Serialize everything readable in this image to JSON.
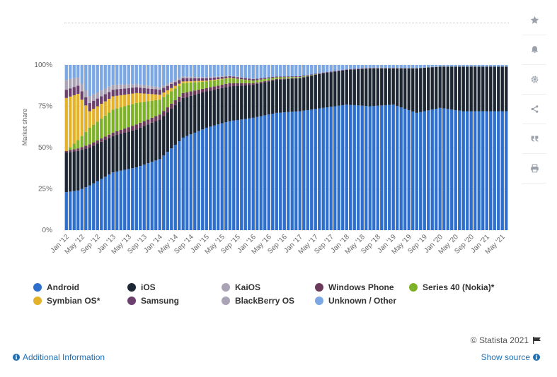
{
  "toolbar": {
    "icons": [
      "star-icon",
      "bell-icon",
      "gear-icon",
      "share-icon",
      "quote-icon",
      "print-icon"
    ]
  },
  "chart_data": {
    "type": "bar",
    "stacked": true,
    "ylabel": "Market share",
    "ylim": [
      0,
      100
    ],
    "yticks": [
      "0%",
      "25%",
      "50%",
      "75%",
      "100%"
    ],
    "grid": true,
    "x_tick_labels": [
      "Jan '12",
      "May '12",
      "Sep '12",
      "Jan '13",
      "May '13",
      "Sep '13",
      "Jan '14",
      "May '14",
      "Sep '14",
      "Jan '15",
      "May '15",
      "Sep '15",
      "Jan '16",
      "May '16",
      "Sep '16",
      "Jan '17",
      "May '17",
      "Sep '17",
      "Jan '18",
      "May '18",
      "Sep '18",
      "Jan '19",
      "May '19",
      "Sep '19",
      "Jan '20",
      "May '20",
      "Sep '20",
      "Jan '21",
      "May '21"
    ],
    "months_count": 114,
    "series": [
      {
        "name": "Android",
        "color": "#2e6fce",
        "keys": [
          [
            0,
            23
          ],
          [
            3,
            24
          ],
          [
            6,
            27
          ],
          [
            12,
            35
          ],
          [
            18,
            38
          ],
          [
            24,
            43
          ],
          [
            30,
            56
          ],
          [
            36,
            62
          ],
          [
            42,
            66
          ],
          [
            48,
            68
          ],
          [
            54,
            71
          ],
          [
            60,
            72
          ],
          [
            66,
            74
          ],
          [
            72,
            76
          ],
          [
            78,
            75
          ],
          [
            84,
            76
          ],
          [
            90,
            71
          ],
          [
            96,
            74
          ],
          [
            102,
            72
          ],
          [
            108,
            72
          ],
          [
            113,
            72
          ]
        ]
      },
      {
        "name": "iOS",
        "color": "#1d2733",
        "keys": [
          [
            0,
            24
          ],
          [
            3,
            24
          ],
          [
            6,
            23
          ],
          [
            12,
            22
          ],
          [
            18,
            23
          ],
          [
            24,
            24
          ],
          [
            30,
            24
          ],
          [
            36,
            22
          ],
          [
            42,
            21
          ],
          [
            48,
            20
          ],
          [
            54,
            20
          ],
          [
            60,
            20
          ],
          [
            66,
            21
          ],
          [
            72,
            21
          ],
          [
            78,
            23
          ],
          [
            84,
            22
          ],
          [
            90,
            27
          ],
          [
            96,
            25
          ],
          [
            102,
            27
          ],
          [
            108,
            27
          ],
          [
            113,
            27
          ]
        ]
      },
      {
        "name": "KaiOS",
        "color": "#aaa3b6",
        "keys": [
          [
            0,
            0
          ],
          [
            72,
            0
          ],
          [
            78,
            0.2
          ],
          [
            84,
            0.3
          ],
          [
            90,
            0.2
          ],
          [
            96,
            0.1
          ],
          [
            113,
            0
          ]
        ]
      },
      {
        "name": "Windows Phone",
        "color": "#6b3a5b",
        "keys": [
          [
            0,
            1
          ],
          [
            6,
            2
          ],
          [
            12,
            2
          ],
          [
            18,
            3
          ],
          [
            24,
            3
          ],
          [
            30,
            3
          ],
          [
            36,
            2
          ],
          [
            42,
            2
          ],
          [
            48,
            1
          ],
          [
            54,
            0.5
          ],
          [
            60,
            0.2
          ],
          [
            66,
            0
          ],
          [
            113,
            0
          ]
        ]
      },
      {
        "name": "Series 40 (Nokia)*",
        "color": "#7db127",
        "keys": [
          [
            0,
            0
          ],
          [
            6,
            10
          ],
          [
            12,
            14
          ],
          [
            18,
            13
          ],
          [
            24,
            9
          ],
          [
            30,
            6
          ],
          [
            36,
            4
          ],
          [
            42,
            3
          ],
          [
            48,
            1.5
          ],
          [
            54,
            1
          ],
          [
            60,
            0.5
          ],
          [
            66,
            0
          ],
          [
            113,
            0
          ]
        ]
      },
      {
        "name": "Symbian OS*",
        "color": "#e4b22a",
        "keys": [
          [
            0,
            32
          ],
          [
            3,
            28
          ],
          [
            6,
            10
          ],
          [
            12,
            8
          ],
          [
            18,
            6
          ],
          [
            24,
            3
          ],
          [
            30,
            1
          ],
          [
            36,
            0.5
          ],
          [
            42,
            0.2
          ],
          [
            48,
            0
          ],
          [
            113,
            0
          ]
        ]
      },
      {
        "name": "Samsung",
        "color": "#6b3f6e",
        "keys": [
          [
            0,
            5
          ],
          [
            6,
            5
          ],
          [
            12,
            4
          ],
          [
            18,
            3.5
          ],
          [
            24,
            3
          ],
          [
            30,
            2
          ],
          [
            36,
            1.5
          ],
          [
            42,
            1
          ],
          [
            48,
            1
          ],
          [
            54,
            0.5
          ],
          [
            60,
            0.5
          ],
          [
            66,
            0.4
          ],
          [
            72,
            0.3
          ],
          [
            78,
            0.2
          ],
          [
            84,
            0
          ],
          [
            113,
            0
          ]
        ]
      },
      {
        "name": "BlackBerry OS",
        "color": "#aaa3b6",
        "keys": [
          [
            0,
            6
          ],
          [
            6,
            4
          ],
          [
            12,
            3
          ],
          [
            18,
            2
          ],
          [
            24,
            1.5
          ],
          [
            30,
            1
          ],
          [
            36,
            0.5
          ],
          [
            42,
            0.3
          ],
          [
            48,
            0.1
          ],
          [
            54,
            0
          ],
          [
            113,
            0
          ]
        ]
      },
      {
        "name": "Unknown / Other",
        "color": "#7ba7e3",
        "keys": "remainder"
      }
    ]
  },
  "legend": [
    {
      "label": "Android",
      "color": "#2e6fce"
    },
    {
      "label": "iOS",
      "color": "#1d2733"
    },
    {
      "label": "KaiOS",
      "color": "#aaa3b6"
    },
    {
      "label": "Windows Phone",
      "color": "#6b3a5b"
    },
    {
      "label": "Series 40 (Nokia)*",
      "color": "#7db127"
    },
    {
      "label": "Symbian OS*",
      "color": "#e4b22a"
    },
    {
      "label": "Samsung",
      "color": "#6b3f6e"
    },
    {
      "label": "BlackBerry OS",
      "color": "#aaa3b6"
    },
    {
      "label": "Unknown / Other",
      "color": "#7ba7e3"
    }
  ],
  "credit": "© Statista 2021",
  "links": {
    "additional_info": "Additional Information",
    "show_source": "Show source"
  }
}
